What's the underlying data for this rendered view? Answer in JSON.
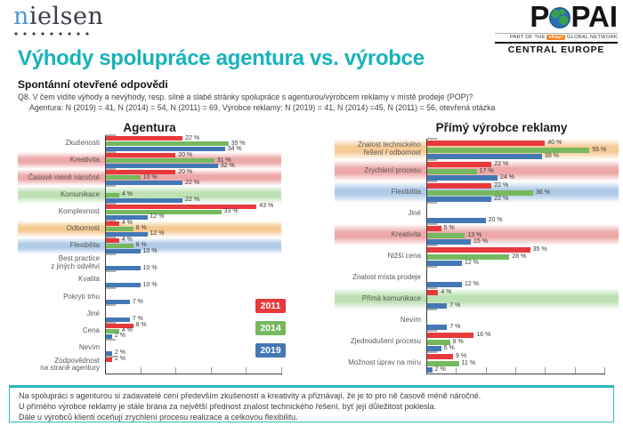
{
  "header": {
    "nielsen_first": "n",
    "nielsen_rest": "ielsen",
    "popai": {
      "logo_first": "P",
      "logo_rest": "PAI",
      "tagline_prefix": "PART OF THE",
      "tagline_badge": "shop!",
      "tagline_suffix": "GLOBAL NETWORK",
      "region": "CENTRAL EUROPE"
    }
  },
  "title": "Výhody spolupráce agentura vs. výrobce",
  "subtitle": "Spontánní otevřené odpovědi",
  "question": {
    "line1": "Q8. V čem vidíte výhody a nevýhody, resp. silné a slabé stránky spolupráce s agenturou/výrobcem reklamy v místě prodeje (POP)?",
    "line2": "Agentura: N (2019) = 41, N (2014) = 54, N (2011) = 69, Výrobce reklamy: N (2019) = 41, N (2014) =45, N (2011) = 56, otevřená otázka"
  },
  "legend": [
    {
      "label": "2011",
      "color": "#e8393c"
    },
    {
      "label": "2014",
      "color": "#76b85e"
    },
    {
      "label": "2019",
      "color": "#4478b5"
    }
  ],
  "band_colors": {
    "pink": "#eda4a4",
    "orange": "#f6c78e",
    "green": "#b9dfae",
    "blue": "#abc8e6"
  },
  "chart_data": [
    {
      "type": "bar",
      "orientation": "horizontal",
      "title": "Agentura",
      "unit": "%",
      "xlim": [
        0,
        50
      ],
      "tick_interval": 10,
      "series_order": [
        "2011",
        "2014",
        "2019"
      ],
      "rows": [
        {
          "label": "Zkušenosti",
          "band": null,
          "values": {
            "2011": 22,
            "2014": 35,
            "2019": 34
          }
        },
        {
          "label": "Kreativita",
          "band": "pink",
          "values": {
            "2011": 20,
            "2014": 31,
            "2019": 32
          }
        },
        {
          "label": "Časově méně náročné",
          "band": "pink",
          "values": {
            "2011": 20,
            "2014": 10,
            "2019": 22
          }
        },
        {
          "label": "Komunikace",
          "band": "green",
          "values": {
            "2011": null,
            "2014": 4,
            "2019": 22
          }
        },
        {
          "label": "Komplexnost",
          "band": null,
          "values": {
            "2011": 43,
            "2014": 33,
            "2019": 12
          }
        },
        {
          "label": "Odbornost",
          "band": "orange",
          "values": {
            "2011": 4,
            "2014": 8,
            "2019": 12
          }
        },
        {
          "label": "Flexibilita",
          "band": "blue",
          "values": {
            "2011": 4,
            "2014": 8,
            "2019": 10
          }
        },
        {
          "label": "Best practice\nz jiných odvětví",
          "band": null,
          "values": {
            "2011": null,
            "2014": null,
            "2019": 10
          }
        },
        {
          "label": "Kvalita",
          "band": null,
          "values": {
            "2011": null,
            "2014": null,
            "2019": 10
          }
        },
        {
          "label": "Pokrytí trhu",
          "band": null,
          "values": {
            "2011": null,
            "2014": null,
            "2019": 7
          }
        },
        {
          "label": "Jiné",
          "band": null,
          "values": {
            "2011": null,
            "2014": null,
            "2019": 7
          }
        },
        {
          "label": "Cena",
          "band": null,
          "values": {
            "2011": 8,
            "2014": 4,
            "2019": 2
          }
        },
        {
          "label": "Nevím",
          "band": null,
          "values": {
            "2011": null,
            "2014": null,
            "2019": 2
          }
        },
        {
          "label": "Zodpovědnost\nna straně agentury",
          "band": null,
          "values": {
            "2011": 2,
            "2014": null,
            "2019": null
          }
        }
      ]
    },
    {
      "type": "bar",
      "orientation": "horizontal",
      "title": "Přímý výrobce reklamy",
      "unit": "%",
      "xlim": [
        0,
        60
      ],
      "tick_interval": 10,
      "series_order": [
        "2011",
        "2014",
        "2019"
      ],
      "rows": [
        {
          "label": "Znalost technického\nřešení / odbornost",
          "band": "orange",
          "values": {
            "2011": 40,
            "2014": 55,
            "2019": 39
          }
        },
        {
          "label": "Zrychlení procesu",
          "band": "pink",
          "values": {
            "2011": 22,
            "2014": 17,
            "2019": 24
          }
        },
        {
          "label": "Flexibilita",
          "band": "blue",
          "values": {
            "2011": 22,
            "2014": 36,
            "2019": 22
          }
        },
        {
          "label": "Jiné",
          "band": null,
          "values": {
            "2011": null,
            "2014": null,
            "2019": 20
          }
        },
        {
          "label": "Kreativita",
          "band": "pink",
          "values": {
            "2011": 5,
            "2014": 13,
            "2019": 15
          }
        },
        {
          "label": "Nižší cena",
          "band": null,
          "values": {
            "2011": 35,
            "2014": 28,
            "2019": 12
          }
        },
        {
          "label": "Znalost místa prodeje",
          "band": null,
          "values": {
            "2011": null,
            "2014": null,
            "2019": 12
          }
        },
        {
          "label": "Přímá komunikace",
          "band": "green",
          "values": {
            "2011": 4,
            "2014": null,
            "2019": 7
          }
        },
        {
          "label": "Nevím",
          "band": null,
          "values": {
            "2011": null,
            "2014": null,
            "2019": 7
          }
        },
        {
          "label": "Zjednodušení procesu",
          "band": null,
          "values": {
            "2011": 16,
            "2014": 8,
            "2019": 5
          }
        },
        {
          "label": "Možnost úprav na míru",
          "band": null,
          "values": {
            "2011": 9,
            "2014": 11,
            "2019": 2
          }
        }
      ]
    }
  ],
  "summary_box": {
    "lines": [
      "Na spolupráci s agenturou si zadavatelé cení především zkušeností a kreativity a přiznávají, že je to pro ně časově méně náročné.",
      "U přímého výrobce reklamy je stále brána za největší přednost znalost technického řešení, byť její důležitost poklesla.",
      "Dále u výrobců klienti oceňují zrychlení procesu realizace a celkovou flexibilitu."
    ]
  },
  "colors": {
    "accent_teal": "#17b2bc",
    "bar_2011": "#e8393c",
    "bar_2014": "#76b85e",
    "bar_2019": "#4478b5"
  }
}
